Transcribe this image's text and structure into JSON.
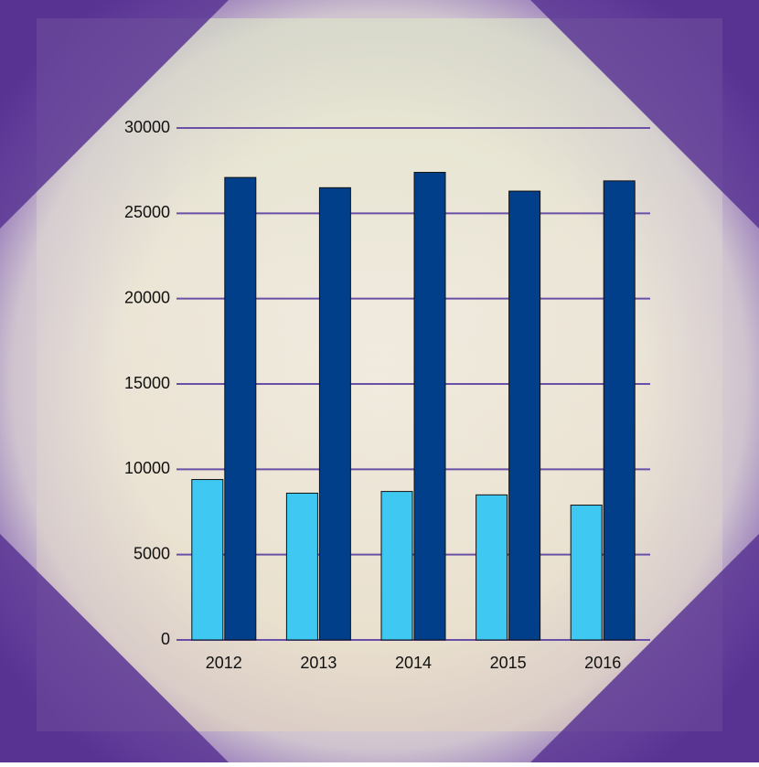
{
  "chart_data": {
    "type": "bar",
    "categories": [
      "2012",
      "2013",
      "2014",
      "2015",
      "2016"
    ],
    "series": [
      {
        "color": "#3ec8f2",
        "values": [
          9400,
          8600,
          8700,
          8500,
          7900
        ]
      },
      {
        "color": "#023f8a",
        "values": [
          27100,
          26500,
          27400,
          26300,
          26900
        ]
      }
    ],
    "ylim": [
      0,
      30000
    ],
    "yticks": [
      0,
      5000,
      10000,
      15000,
      20000,
      25000,
      30000
    ],
    "grid": true,
    "grid_color": "#6a4fa6"
  }
}
